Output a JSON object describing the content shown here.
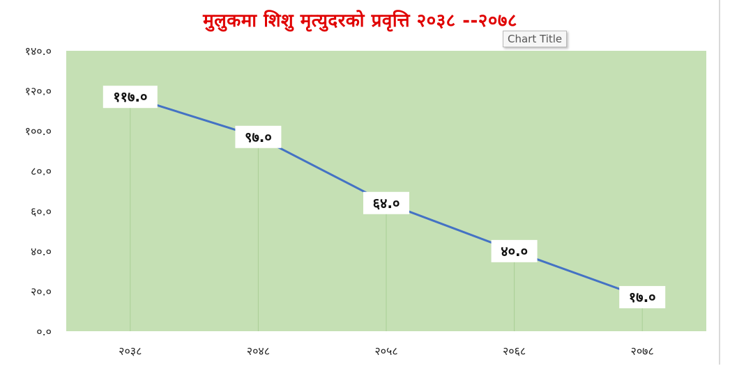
{
  "chart_data": {
    "type": "line",
    "title": "मुलुकमा शिशु मृत्युदरको प्रवृत्ति २०३८ --२०७८",
    "categories": [
      "२०३८",
      "२०४८",
      "२०५८",
      "२०६८",
      "२०७८"
    ],
    "values": [
      117.0,
      97.0,
      64.0,
      40.0,
      17.0
    ],
    "data_labels": [
      "११७.०",
      "९७.०",
      "६४.०",
      "४०.०",
      "१७.०"
    ],
    "ylim": [
      0,
      140
    ],
    "yticks": [
      0,
      20,
      40,
      60,
      80,
      100,
      120,
      140
    ],
    "ytick_labels": [
      "०.०",
      "२०.०",
      "४०.०",
      "६०.०",
      "८०.०",
      "१००.०",
      "१२०.०",
      "१४०.०"
    ],
    "xlabel": "",
    "ylabel": "",
    "grid": "vertical drop lines",
    "legend": "none",
    "colors": {
      "plot_background": "#c5e0b4",
      "line": "#4472c4",
      "title": "#e00000",
      "label_box": "#ffffff"
    }
  },
  "tooltip": {
    "text": "Chart Title"
  }
}
